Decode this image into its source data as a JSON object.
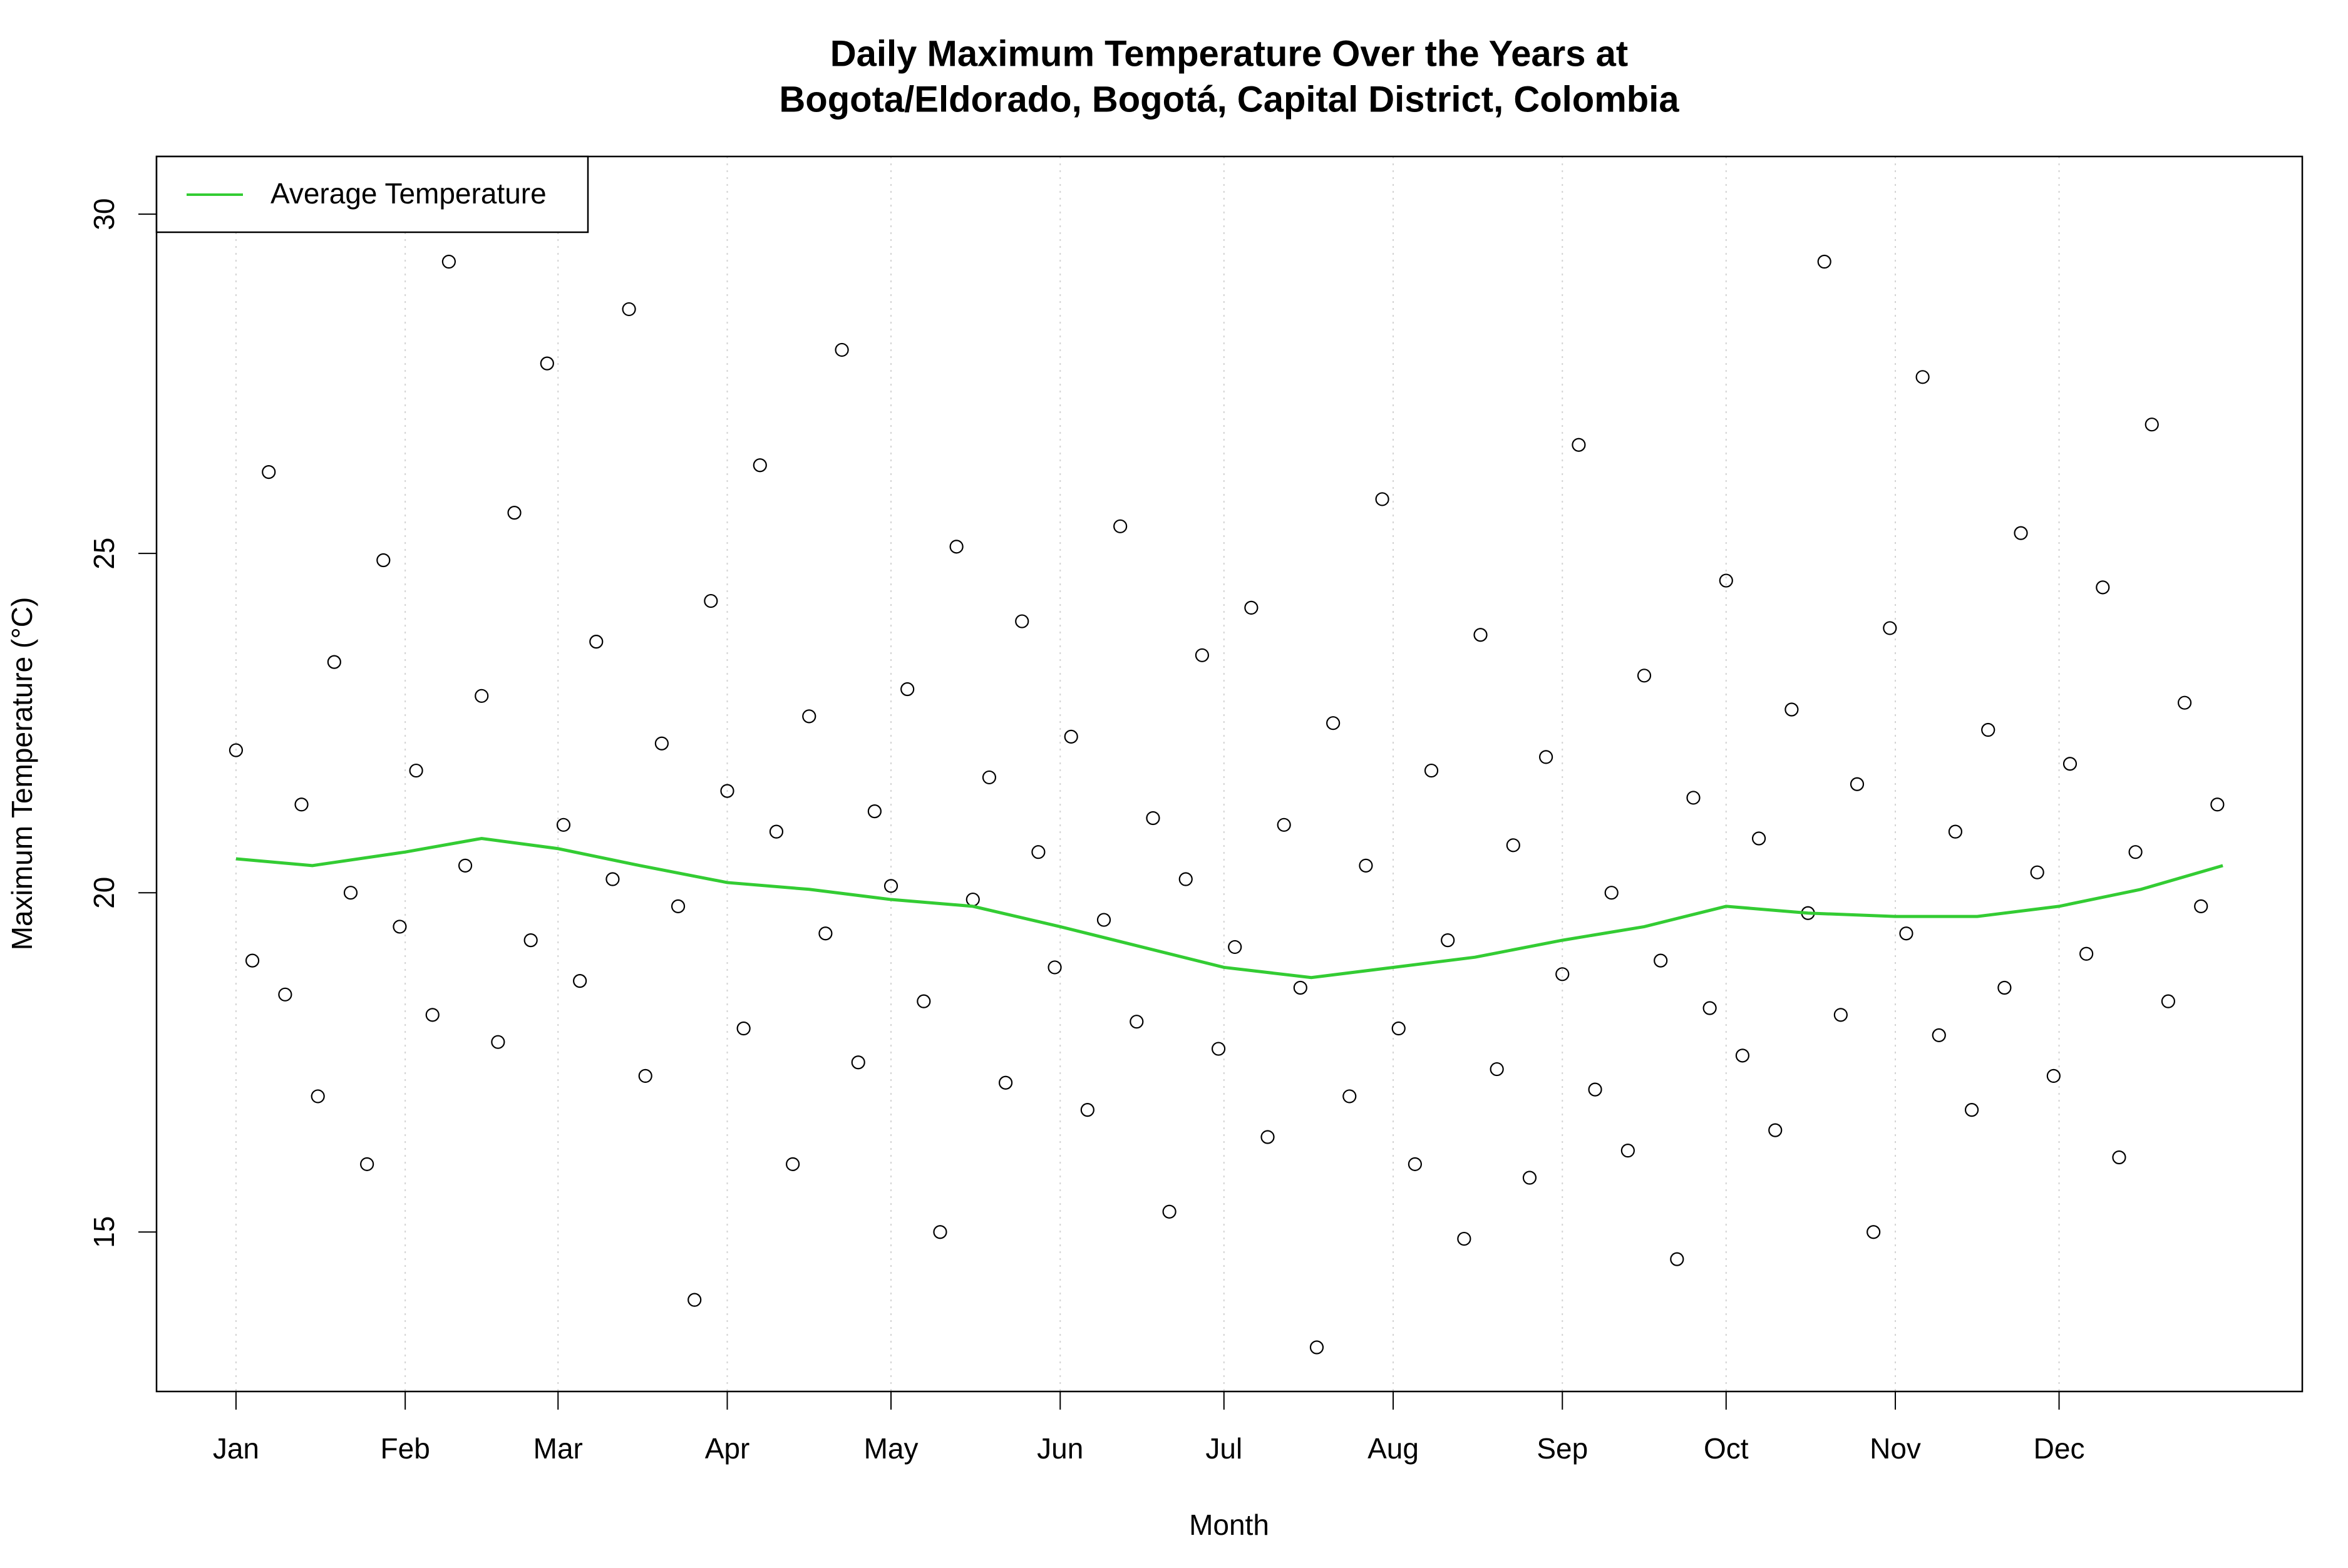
{
  "chart_data": {
    "type": "scatter",
    "title": [
      "Daily Maximum Temperature Over the Years at",
      "Bogota/Eldorado, Bogotá, Capital District, Colombia"
    ],
    "x_label": "Month",
    "y_label": "Maximum Temperature (°C)",
    "xlim": [
      -13.56,
      379.56
    ],
    "ylim": [
      12.65,
      30.85
    ],
    "xticks": [
      {
        "value": 1,
        "label": "Jan"
      },
      {
        "value": 32,
        "label": "Feb"
      },
      {
        "value": 60,
        "label": "Mar"
      },
      {
        "value": 91,
        "label": "Apr"
      },
      {
        "value": 121,
        "label": "May"
      },
      {
        "value": 152,
        "label": "Jun"
      },
      {
        "value": 182,
        "label": "Jul"
      },
      {
        "value": 213,
        "label": "Aug"
      },
      {
        "value": 244,
        "label": "Sep"
      },
      {
        "value": 274,
        "label": "Oct"
      },
      {
        "value": 305,
        "label": "Nov"
      },
      {
        "value": 335,
        "label": "Dec"
      }
    ],
    "yticks": [
      15,
      20,
      25,
      30
    ],
    "grid": true,
    "legend": "top-left",
    "series": [
      {
        "type": "scatter",
        "color": "#000000",
        "x": [
          1,
          4,
          7,
          10,
          13,
          16,
          19,
          22,
          25,
          28,
          31,
          34,
          37,
          40,
          43,
          46,
          49,
          52,
          55,
          58,
          61,
          64,
          67,
          70,
          73,
          76,
          79,
          82,
          85,
          88,
          91,
          94,
          97,
          100,
          103,
          106,
          109,
          112,
          115,
          118,
          121,
          124,
          127,
          130,
          133,
          136,
          139,
          142,
          145,
          148,
          151,
          154,
          157,
          160,
          163,
          166,
          169,
          172,
          175,
          178,
          181,
          184,
          187,
          190,
          193,
          196,
          199,
          202,
          205,
          208,
          211,
          214,
          217,
          220,
          223,
          226,
          229,
          232,
          235,
          238,
          241,
          244,
          247,
          250,
          253,
          256,
          259,
          262,
          265,
          268,
          271,
          274,
          277,
          280,
          283,
          286,
          289,
          292,
          295,
          298,
          301,
          304,
          307,
          310,
          313,
          316,
          319,
          322,
          325,
          328,
          331,
          334,
          337,
          340,
          343,
          346,
          349,
          352,
          355,
          358,
          361,
          364
        ],
        "values": [
          22.1,
          19.0,
          26.2,
          18.5,
          21.3,
          17.0,
          23.4,
          20.0,
          16.0,
          24.9,
          19.5,
          21.8,
          18.2,
          29.3,
          20.4,
          22.9,
          17.8,
          25.6,
          19.3,
          27.8,
          21.0,
          18.7,
          23.7,
          20.2,
          28.6,
          17.3,
          22.2,
          19.8,
          14.0,
          24.3,
          21.5,
          18.0,
          26.3,
          20.9,
          16.0,
          22.6,
          19.4,
          28.0,
          17.5,
          21.2,
          20.1,
          23.0,
          18.4,
          15.0,
          25.1,
          19.9,
          21.7,
          17.2,
          24.0,
          20.6,
          18.9,
          22.3,
          16.8,
          19.6,
          25.4,
          18.1,
          21.1,
          15.3,
          20.2,
          23.5,
          17.7,
          19.2,
          24.2,
          16.4,
          21.0,
          18.6,
          13.3,
          22.5,
          17.0,
          20.4,
          25.8,
          18.0,
          16.0,
          21.8,
          19.3,
          14.9,
          23.8,
          17.4,
          20.7,
          15.8,
          22.0,
          18.8,
          26.6,
          17.1,
          20.0,
          16.2,
          23.2,
          19.0,
          14.6,
          21.4,
          18.3,
          24.6,
          17.6,
          20.8,
          16.5,
          22.7,
          19.7,
          29.3,
          18.2,
          21.6,
          15.0,
          23.9,
          19.4,
          27.6,
          17.9,
          20.9,
          16.8,
          22.4,
          18.6,
          25.3,
          20.3,
          17.3,
          21.9,
          19.1,
          24.5,
          16.1,
          20.6,
          26.9,
          18.4,
          22.8,
          19.8,
          21.3
        ]
      },
      {
        "type": "line",
        "name": "Average Temperature",
        "color": "#33cc33",
        "x": [
          1,
          15,
          32,
          46,
          60,
          75,
          91,
          106,
          121,
          136,
          152,
          167,
          182,
          198,
          213,
          228,
          244,
          259,
          274,
          289,
          305,
          320,
          335,
          350,
          365
        ],
        "values": [
          20.5,
          20.4,
          20.6,
          20.8,
          20.65,
          20.4,
          20.15,
          20.05,
          19.9,
          19.8,
          19.5,
          19.2,
          18.9,
          18.75,
          18.9,
          19.05,
          19.3,
          19.5,
          19.8,
          19.7,
          19.65,
          19.65,
          19.8,
          20.05,
          20.4
        ]
      }
    ]
  }
}
